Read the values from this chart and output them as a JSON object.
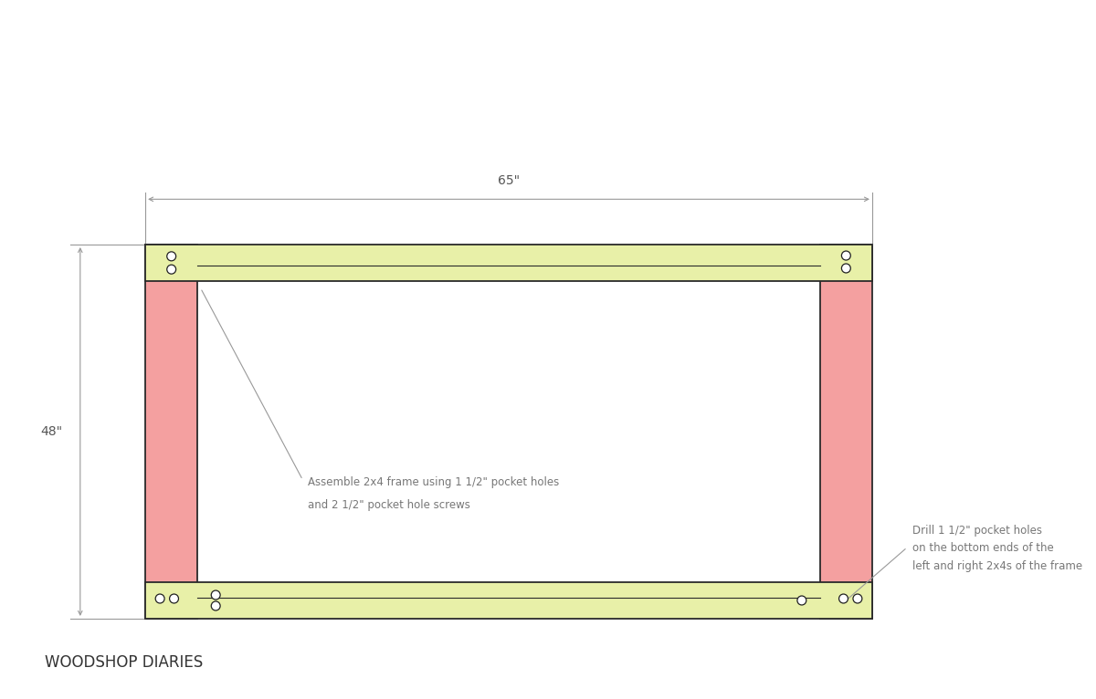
{
  "bg_color": "#ffffff",
  "pink": "#F4A0A0",
  "yellow": "#E8F0A8",
  "outline": "#2a2a2a",
  "dim_color": "#999999",
  "ann_color": "#777777",
  "watermark": "WOODSHOP DIARIES",
  "dim_65": "65\"",
  "dim_48": "48\"",
  "note1a": "Assemble 2x4 frame using 1 1/2\" pocket holes",
  "note1b": "and 2 1/2\" pocket hole screws",
  "note2a": "Drill 1 1/2\" pocket holes",
  "note2b": "on the bottom ends of the",
  "note2c": "left and right 2x4s of the frame",
  "fx": 0.145,
  "fy": 0.115,
  "fw": 0.725,
  "fh": 0.535,
  "bt": 0.052
}
